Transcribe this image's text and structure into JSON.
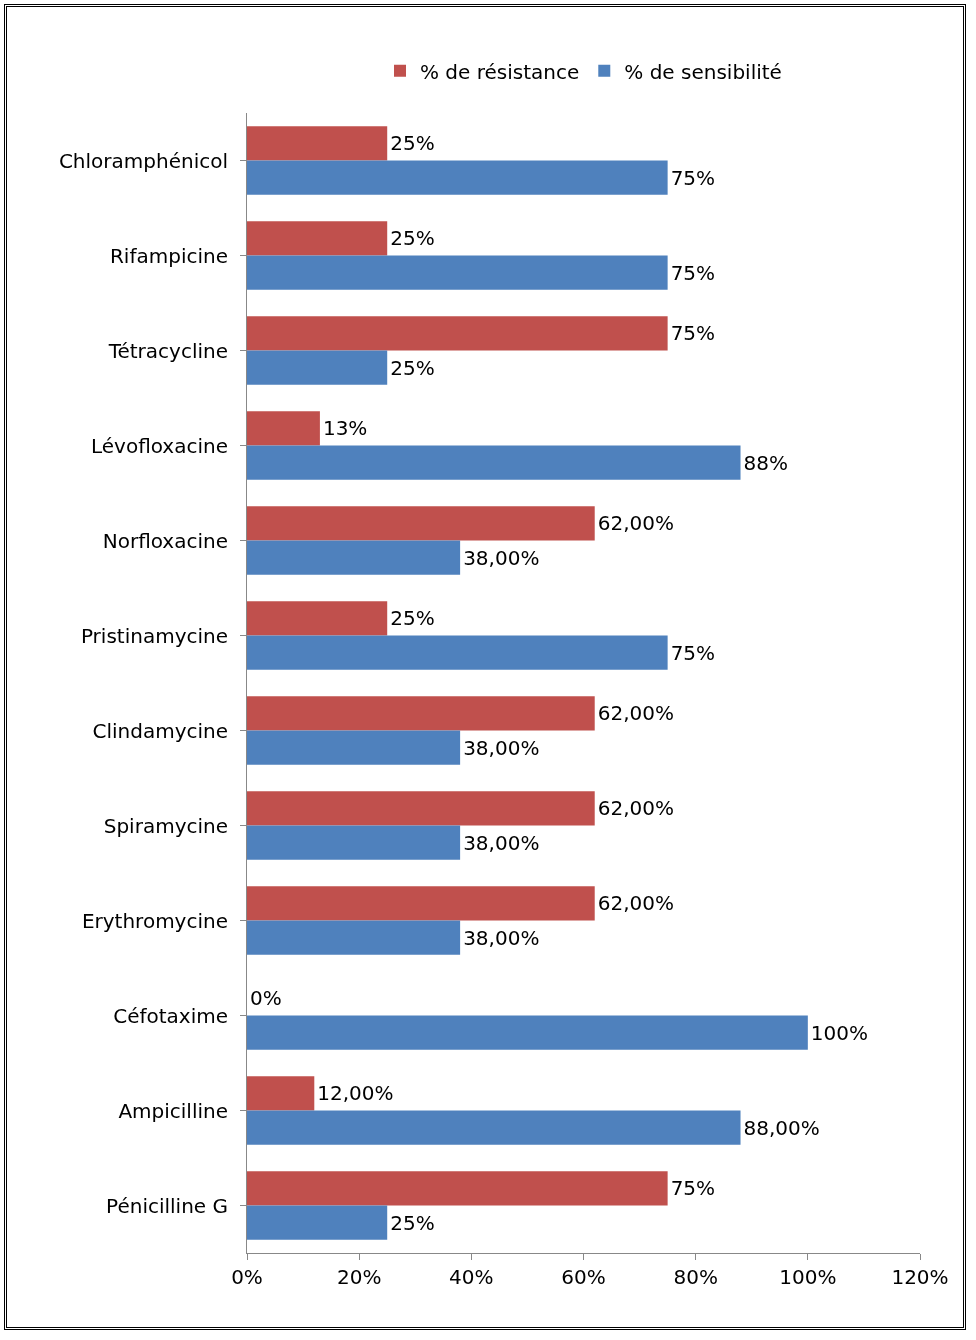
{
  "chart_data": {
    "type": "bar",
    "orientation": "horizontal",
    "legend": "top",
    "grid": false,
    "categories": [
      "Chloramphénicol",
      "Rifampicine",
      "Tétracycline",
      "Lévofloxacine",
      "Norfloxacine",
      "Pristinamycine",
      "Clindamycine",
      "Spiramycine",
      "Erythromycine",
      "Céfotaxime",
      "Ampicilline",
      "Pénicilline G"
    ],
    "series": [
      {
        "name": "% de résistance",
        "color": "#c0504d",
        "values": [
          25,
          25,
          75,
          13,
          62,
          25,
          62,
          62,
          62,
          0,
          12,
          75
        ],
        "value_labels": [
          "25%",
          "25%",
          "75%",
          "13%",
          "62,00%",
          "25%",
          "62,00%",
          "62,00%",
          "62,00%",
          "0%",
          "12,00%",
          "75%"
        ]
      },
      {
        "name": "% de sensibilité",
        "color": "#4f81bd",
        "values": [
          75,
          75,
          25,
          88,
          38,
          75,
          38,
          38,
          38,
          100,
          88,
          25
        ],
        "value_labels": [
          "75%",
          "75%",
          "25%",
          "88%",
          "38,00%",
          "75%",
          "38,00%",
          "38,00%",
          "38,00%",
          "100%",
          "88,00%",
          "25%"
        ]
      }
    ],
    "xlim": [
      0,
      120
    ],
    "xticks": [
      {
        "value": 0,
        "label": "0%"
      },
      {
        "value": 20,
        "label": "20%"
      },
      {
        "value": 40,
        "label": "40%"
      },
      {
        "value": 60,
        "label": "60%"
      },
      {
        "value": 80,
        "label": "80%"
      },
      {
        "value": 100,
        "label": "100%"
      },
      {
        "value": 120,
        "label": "120%"
      }
    ]
  }
}
